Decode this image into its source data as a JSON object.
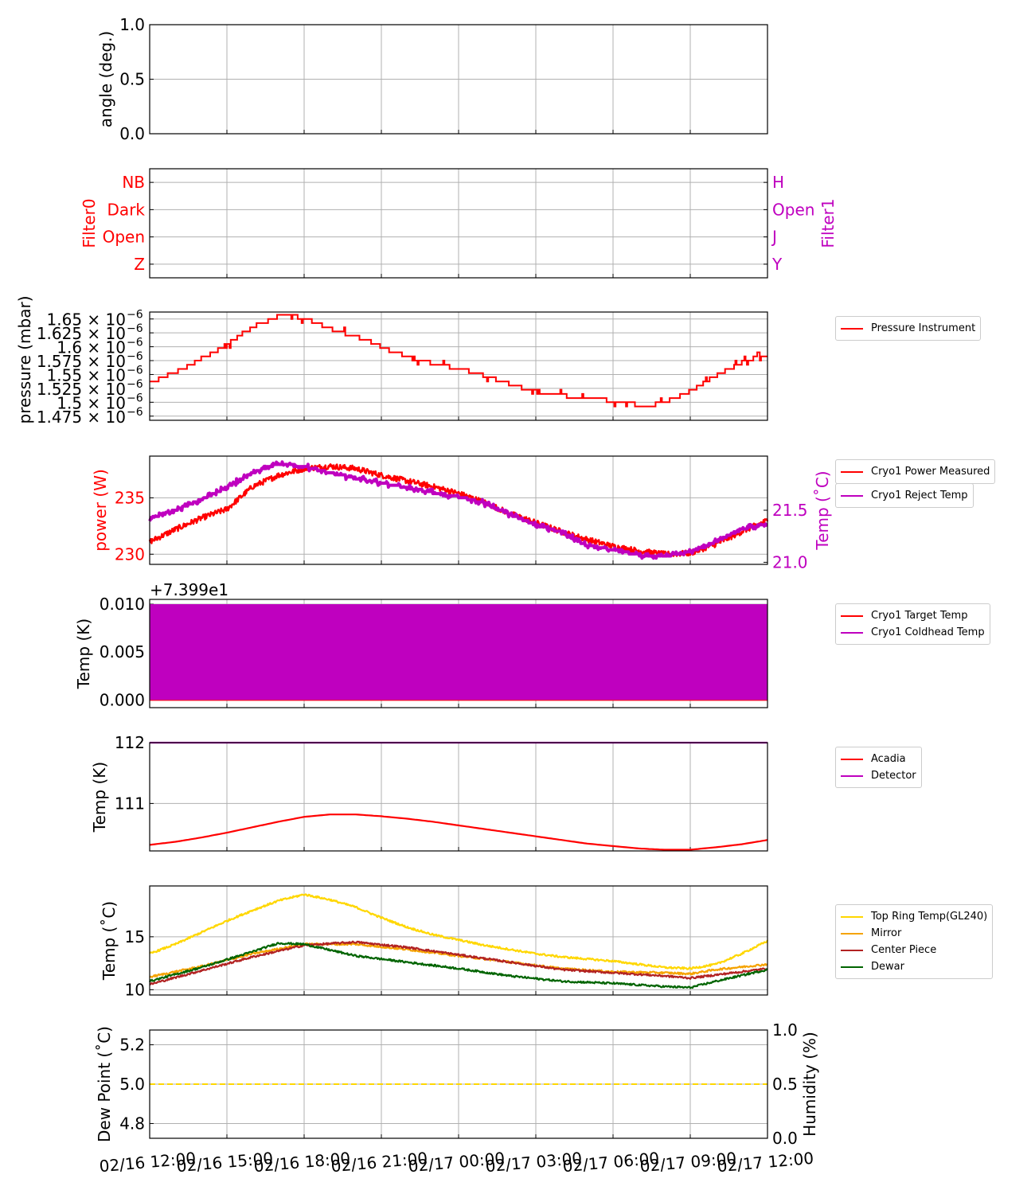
{
  "chart_data": [
    {
      "id": "angle",
      "type": "line",
      "ylabel": "angle (deg.)",
      "ylim": [
        0,
        1
      ],
      "yticks": [
        "0.0",
        "0.5",
        "1.0"
      ],
      "grid": true,
      "series": []
    },
    {
      "id": "filters",
      "type": "line",
      "ylabel": "Filter0",
      "ylabel_color": "#ff0000",
      "y_categories": [
        "Z",
        "Open",
        "Dark",
        "NB"
      ],
      "ylabel_right": "Filter1",
      "ylabel_right_color": "#bf00bf",
      "y_categories_right": [
        "Y",
        "J",
        "Open",
        "H"
      ],
      "grid": true,
      "series": []
    },
    {
      "id": "pressure",
      "type": "line",
      "ylabel": "pressure (mbar)",
      "ylim": [
        1.4675e-06,
        1.6625e-06
      ],
      "yticks_mantissa": [
        "1.475",
        "1.5",
        "1.525",
        "1.55",
        "1.575",
        "1.6",
        "1.625",
        "1.65"
      ],
      "ytick_suffix": "× 10",
      "ytick_exponent": "−6",
      "grid": true,
      "legend": "right",
      "series": [
        {
          "name": "Pressure Instrument",
          "color": "#ff0000",
          "style": "step",
          "x": [
            "02/16 12:00",
            "02/16 12:30",
            "02/16 13:00",
            "02/16 13:30",
            "02/16 14:00",
            "02/16 14:30",
            "02/16 15:00",
            "02/16 15:30",
            "02/16 16:00",
            "02/16 16:30",
            "02/16 17:00",
            "02/16 17:30",
            "02/16 18:00",
            "02/16 18:30",
            "02/16 19:00",
            "02/16 19:30",
            "02/16 20:00",
            "02/16 20:30",
            "02/16 21:00",
            "02/16 21:30",
            "02/16 22:00",
            "02/16 22:30",
            "02/16 23:00",
            "02/16 23:30",
            "02/17 00:00",
            "02/17 00:30",
            "02/17 01:00",
            "02/17 01:30",
            "02/17 02:00",
            "02/17 02:30",
            "02/17 03:00",
            "02/17 03:30",
            "02/17 04:00",
            "02/17 04:30",
            "02/17 05:00",
            "02/17 05:30",
            "02/17 06:00",
            "02/17 06:30",
            "02/17 07:00",
            "02/17 07:30",
            "02/17 08:00",
            "02/17 08:30",
            "02/17 09:00",
            "02/17 09:30",
            "02/17 10:00",
            "02/17 10:30",
            "02/17 11:00",
            "02/17 11:30",
            "02/17 12:00"
          ],
          "y": [
            1.535e-06,
            1.545e-06,
            1.555e-06,
            1.565e-06,
            1.58e-06,
            1.59e-06,
            1.605e-06,
            1.62e-06,
            1.635e-06,
            1.645e-06,
            1.655e-06,
            1.655e-06,
            1.652e-06,
            1.642e-06,
            1.632e-06,
            1.625e-06,
            1.618e-06,
            1.61e-06,
            1.6e-06,
            1.59e-06,
            1.583e-06,
            1.575e-06,
            1.57e-06,
            1.565e-06,
            1.56e-06,
            1.555e-06,
            1.548e-06,
            1.54e-06,
            1.532e-06,
            1.525e-06,
            1.52e-06,
            1.515e-06,
            1.512e-06,
            1.51e-06,
            1.508e-06,
            1.505e-06,
            1.502e-06,
            1.498e-06,
            1.495e-06,
            1.495e-06,
            1.5e-06,
            1.51e-06,
            1.52e-06,
            1.535e-06,
            1.548e-06,
            1.56e-06,
            1.572e-06,
            1.58e-06,
            1.585e-06
          ]
        }
      ]
    },
    {
      "id": "cryo-power",
      "type": "line",
      "ylabel": "power (W)",
      "ylabel_color": "#ff0000",
      "ylim": [
        229.1,
        238.7
      ],
      "yticks": [
        "230",
        "235"
      ],
      "ylabel_right": "Temp (˚C)",
      "ylabel_right_color": "#bf00bf",
      "ylim_right": [
        20.98,
        22.02
      ],
      "yticks_right": [
        "21.0",
        "21.5"
      ],
      "grid": true,
      "legend": "right",
      "series": [
        {
          "name": "Cryo1 Power Measured",
          "color": "#ff0000",
          "axis": "left",
          "x": [
            "02/16 12:00",
            "02/16 13:00",
            "02/16 14:00",
            "02/16 15:00",
            "02/16 16:00",
            "02/16 17:00",
            "02/16 18:00",
            "02/16 19:00",
            "02/16 20:00",
            "02/16 21:00",
            "02/16 22:00",
            "02/16 23:00",
            "02/17 00:00",
            "02/17 01:00",
            "02/17 02:00",
            "02/17 03:00",
            "02/17 04:00",
            "02/17 05:00",
            "02/17 06:00",
            "02/17 07:00",
            "02/17 08:00",
            "02/17 09:00",
            "02/17 10:00",
            "02/17 11:00",
            "02/17 12:00"
          ],
          "y": [
            231.1,
            232.2,
            233.2,
            234.0,
            236.0,
            237.0,
            237.6,
            237.8,
            237.6,
            237.0,
            236.5,
            236.0,
            235.4,
            234.6,
            233.6,
            232.8,
            232.0,
            231.3,
            230.7,
            230.3,
            230.0,
            230.1,
            230.9,
            232.0,
            233.0
          ]
        },
        {
          "name": "Cryo1 Reject Temp",
          "color": "#bf00bf",
          "axis": "right",
          "x": [
            "02/16 12:00",
            "02/16 13:00",
            "02/16 14:00",
            "02/16 15:00",
            "02/16 16:00",
            "02/16 17:00",
            "02/16 18:00",
            "02/16 19:00",
            "02/16 20:00",
            "02/16 21:00",
            "02/16 22:00",
            "02/16 23:00",
            "02/17 00:00",
            "02/17 01:00",
            "02/17 02:00",
            "02/17 03:00",
            "02/17 04:00",
            "02/17 05:00",
            "02/17 06:00",
            "02/17 07:00",
            "02/17 08:00",
            "02/17 09:00",
            "02/17 10:00",
            "02/17 11:00",
            "02/17 12:00"
          ],
          "y": [
            21.42,
            21.5,
            21.6,
            21.72,
            21.86,
            21.95,
            21.92,
            21.86,
            21.81,
            21.76,
            21.72,
            21.67,
            21.63,
            21.57,
            21.46,
            21.36,
            21.29,
            21.16,
            21.12,
            21.07,
            21.06,
            21.1,
            21.2,
            21.32,
            21.37
          ]
        }
      ]
    },
    {
      "id": "cryo-temp",
      "type": "area",
      "ylabel": "Temp (K)",
      "offset_label": "+7.399e1",
      "ylim": [
        -0.0008,
        0.0105
      ],
      "yticks": [
        "0.000",
        "0.005",
        "0.010"
      ],
      "grid": true,
      "legend": "right",
      "series": [
        {
          "name": "Cryo1 Target Temp",
          "color": "#ff0000",
          "x": [
            "02/16 12:00",
            "02/17 12:00"
          ],
          "y": [
            0.0,
            0.0
          ]
        },
        {
          "name": "Cryo1 Coldhead Temp",
          "color": "#bf00bf",
          "x": [
            "02/16 12:00",
            "02/17 12:00"
          ],
          "y_min": 0.0,
          "y_max": 0.01
        }
      ]
    },
    {
      "id": "detector",
      "type": "line",
      "ylabel": "Temp (K)",
      "ylim": [
        110.22,
        112.0
      ],
      "yticks": [
        "111",
        "112"
      ],
      "grid": true,
      "legend": "right",
      "series": [
        {
          "name": "Acadia",
          "color": "#ff0000",
          "x": [
            "02/16 12:00",
            "02/16 13:00",
            "02/16 14:00",
            "02/16 15:00",
            "02/16 16:00",
            "02/16 17:00",
            "02/16 18:00",
            "02/16 19:00",
            "02/16 20:00",
            "02/16 21:00",
            "02/16 22:00",
            "02/16 23:00",
            "02/17 00:00",
            "02/17 01:00",
            "02/17 02:00",
            "02/17 03:00",
            "02/17 04:00",
            "02/17 05:00",
            "02/17 06:00",
            "02/17 07:00",
            "02/17 08:00",
            "02/17 09:00",
            "02/17 10:00",
            "02/17 11:00",
            "02/17 12:00"
          ],
          "y": [
            110.32,
            110.37,
            110.44,
            110.52,
            110.61,
            110.7,
            110.78,
            110.82,
            110.82,
            110.79,
            110.75,
            110.7,
            110.64,
            110.58,
            110.52,
            110.46,
            110.4,
            110.34,
            110.3,
            110.26,
            110.24,
            110.24,
            110.28,
            110.33,
            110.4
          ]
        },
        {
          "name": "Detector",
          "color": "#bf00bf",
          "x": [
            "02/16 12:00",
            "02/17 12:00"
          ],
          "y": [
            112.0,
            112.0
          ]
        }
      ]
    },
    {
      "id": "telescope",
      "type": "line",
      "ylabel": "Temp (˚C)",
      "ylim": [
        9.5,
        19.8
      ],
      "yticks": [
        "10",
        "15"
      ],
      "grid": true,
      "legend": "right",
      "series": [
        {
          "name": "Top Ring Temp(GL240)",
          "color": "#ffd700",
          "x": [
            "02/16 12:00",
            "02/16 13:00",
            "02/16 14:00",
            "02/16 15:00",
            "02/16 16:00",
            "02/16 17:00",
            "02/16 18:00",
            "02/16 19:00",
            "02/16 20:00",
            "02/16 21:00",
            "02/16 22:00",
            "02/16 23:00",
            "02/17 00:00",
            "02/17 01:00",
            "02/17 02:00",
            "02/17 03:00",
            "02/17 04:00",
            "02/17 05:00",
            "02/17 06:00",
            "02/17 07:00",
            "02/17 08:00",
            "02/17 09:00",
            "02/17 10:00",
            "02/17 11:00",
            "02/17 12:00"
          ],
          "y": [
            13.4,
            14.3,
            15.4,
            16.5,
            17.5,
            18.4,
            19.0,
            18.5,
            17.8,
            16.8,
            15.9,
            15.2,
            14.7,
            14.2,
            13.8,
            13.4,
            13.1,
            12.9,
            12.7,
            12.4,
            12.1,
            12.0,
            12.4,
            13.4,
            14.6
          ]
        },
        {
          "name": "Mirror",
          "color": "#f5a300",
          "x": [
            "02/16 12:00",
            "02/16 14:00",
            "02/16 16:00",
            "02/16 18:00",
            "02/16 20:00",
            "02/16 22:00",
            "02/17 00:00",
            "02/17 02:00",
            "02/17 04:00",
            "02/17 06:00",
            "02/17 08:00",
            "02/17 09:00",
            "02/17 10:00",
            "02/17 12:00"
          ],
          "y": [
            11.2,
            12.2,
            13.4,
            14.3,
            14.3,
            13.8,
            13.2,
            12.6,
            12.0,
            11.7,
            11.6,
            11.5,
            11.9,
            12.4
          ]
        },
        {
          "name": "Center Piece",
          "color": "#b22222",
          "x": [
            "02/16 12:00",
            "02/16 14:00",
            "02/16 16:00",
            "02/16 18:00",
            "02/16 20:00",
            "02/16 22:00",
            "02/17 00:00",
            "02/17 02:00",
            "02/17 04:00",
            "02/17 06:00",
            "02/17 08:00",
            "02/17 09:00",
            "02/17 10:00",
            "02/17 12:00"
          ],
          "y": [
            10.5,
            11.8,
            13.1,
            14.2,
            14.5,
            14.0,
            13.3,
            12.6,
            11.9,
            11.6,
            11.3,
            11.1,
            11.4,
            12.0
          ]
        },
        {
          "name": "Dewar",
          "color": "#006400",
          "x": [
            "02/16 12:00",
            "02/16 14:00",
            "02/16 16:00",
            "02/16 17:00",
            "02/16 18:00",
            "02/16 20:00",
            "02/16 22:00",
            "02/17 00:00",
            "02/17 02:00",
            "02/17 04:00",
            "02/17 06:00",
            "02/17 08:00",
            "02/17 09:00",
            "02/17 10:00",
            "02/17 12:00"
          ],
          "y": [
            10.8,
            12.1,
            13.6,
            14.4,
            14.3,
            13.2,
            12.6,
            12.0,
            11.3,
            10.8,
            10.6,
            10.3,
            10.2,
            10.8,
            11.9
          ]
        }
      ]
    },
    {
      "id": "humidity",
      "type": "line",
      "ylabel": "Dew Point (˚C)",
      "ylim": [
        4.725,
        5.275
      ],
      "yticks": [
        "4.8",
        "5.0",
        "5.2"
      ],
      "ylabel_right": "Humidity (%)",
      "ylim_right": [
        0,
        1
      ],
      "yticks_right": [
        "0.0",
        "0.5",
        "1.0"
      ],
      "grid": true,
      "series": [
        {
          "name": "",
          "color": "#ffd700",
          "style": "dashed",
          "x": [
            "02/16 12:00",
            "02/17 12:00"
          ],
          "y": [
            5.0,
            5.0
          ]
        }
      ]
    }
  ],
  "x_axis": {
    "tick_labels": [
      "02/16 12:00",
      "02/16 15:00",
      "02/16 18:00",
      "02/16 21:00",
      "02/17 00:00",
      "02/17 03:00",
      "02/17 06:00",
      "02/17 09:00",
      "02/17 12:00"
    ],
    "range": [
      "02/16 12:00",
      "02/17 12:00"
    ]
  },
  "colors": {
    "grid": "#b0b0b0",
    "axis": "#000000"
  }
}
